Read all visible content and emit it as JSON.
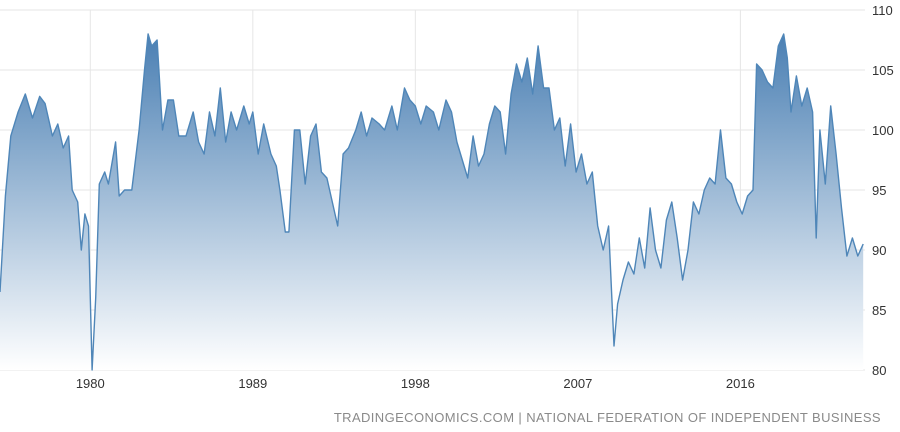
{
  "source_text": "TRADINGECONOMICS.COM | NATIONAL FEDERATION OF INDEPENDENT BUSINESS",
  "colors": {
    "line": "#4f86b8",
    "fill_top": "#4a7fb3",
    "fill_bottom": "#ffffff",
    "grid": "#e6e6e6"
  },
  "chart_data": {
    "type": "area",
    "title": "",
    "xlabel": "",
    "ylabel": "",
    "xlim": [
      1975,
      2022.9
    ],
    "ylim": [
      80,
      110
    ],
    "x_ticks": [
      1980,
      1989,
      1998,
      2007,
      2016
    ],
    "x_tick_labels": [
      "1980",
      "1989",
      "1998",
      "2007",
      "2016"
    ],
    "y_ticks": [
      80,
      85,
      90,
      95,
      100,
      105,
      110
    ],
    "y_tick_labels": [
      "80",
      "85",
      "90",
      "95",
      "100",
      "105",
      "110"
    ],
    "grid": true,
    "y_axis_side": "right",
    "series": [
      {
        "values": [
          [
            1975.0,
            86.5
          ],
          [
            1975.3,
            94.5
          ],
          [
            1975.6,
            99.5
          ],
          [
            1976.0,
            101.5
          ],
          [
            1976.4,
            103.0
          ],
          [
            1976.8,
            101.0
          ],
          [
            1977.2,
            102.8
          ],
          [
            1977.5,
            102.2
          ],
          [
            1977.9,
            99.5
          ],
          [
            1978.2,
            100.5
          ],
          [
            1978.5,
            98.5
          ],
          [
            1978.8,
            99.5
          ],
          [
            1979.0,
            95.0
          ],
          [
            1979.3,
            94.0
          ],
          [
            1979.5,
            90.0
          ],
          [
            1979.7,
            93.0
          ],
          [
            1979.9,
            92.0
          ],
          [
            1980.1,
            80.0
          ],
          [
            1980.3,
            86.0
          ],
          [
            1980.5,
            95.5
          ],
          [
            1980.8,
            96.5
          ],
          [
            1981.0,
            95.5
          ],
          [
            1981.4,
            99.0
          ],
          [
            1981.6,
            94.5
          ],
          [
            1981.9,
            95.0
          ],
          [
            1982.3,
            95.0
          ],
          [
            1982.7,
            100.0
          ],
          [
            1983.0,
            105.0
          ],
          [
            1983.2,
            108.0
          ],
          [
            1983.4,
            107.0
          ],
          [
            1983.7,
            107.5
          ],
          [
            1984.0,
            100.0
          ],
          [
            1984.3,
            102.5
          ],
          [
            1984.6,
            102.5
          ],
          [
            1984.9,
            99.5
          ],
          [
            1985.3,
            99.5
          ],
          [
            1985.7,
            101.5
          ],
          [
            1986.0,
            99.0
          ],
          [
            1986.3,
            98.0
          ],
          [
            1986.6,
            101.5
          ],
          [
            1986.9,
            99.5
          ],
          [
            1987.2,
            103.5
          ],
          [
            1987.5,
            99.0
          ],
          [
            1987.8,
            101.5
          ],
          [
            1988.1,
            100.0
          ],
          [
            1988.5,
            102.0
          ],
          [
            1988.8,
            100.5
          ],
          [
            1989.0,
            101.5
          ],
          [
            1989.3,
            98.0
          ],
          [
            1989.6,
            100.5
          ],
          [
            1990.0,
            98.0
          ],
          [
            1990.3,
            97.0
          ],
          [
            1990.5,
            95.0
          ],
          [
            1990.8,
            91.5
          ],
          [
            1991.0,
            91.5
          ],
          [
            1991.3,
            100.0
          ],
          [
            1991.6,
            100.0
          ],
          [
            1991.9,
            95.5
          ],
          [
            1992.2,
            99.5
          ],
          [
            1992.5,
            100.5
          ],
          [
            1992.8,
            96.5
          ],
          [
            1993.1,
            96.0
          ],
          [
            1993.4,
            94.0
          ],
          [
            1993.7,
            92.0
          ],
          [
            1994.0,
            98.0
          ],
          [
            1994.3,
            98.5
          ],
          [
            1994.7,
            100.0
          ],
          [
            1995.0,
            101.5
          ],
          [
            1995.3,
            99.5
          ],
          [
            1995.6,
            101.0
          ],
          [
            1996.0,
            100.5
          ],
          [
            1996.3,
            100.0
          ],
          [
            1996.7,
            102.0
          ],
          [
            1997.0,
            100.0
          ],
          [
            1997.4,
            103.5
          ],
          [
            1997.7,
            102.5
          ],
          [
            1998.0,
            102.0
          ],
          [
            1998.3,
            100.5
          ],
          [
            1998.6,
            102.0
          ],
          [
            1999.0,
            101.5
          ],
          [
            1999.3,
            100.0
          ],
          [
            1999.7,
            102.5
          ],
          [
            2000.0,
            101.5
          ],
          [
            2000.3,
            99.0
          ],
          [
            2000.6,
            97.5
          ],
          [
            2000.9,
            96.0
          ],
          [
            2001.2,
            99.5
          ],
          [
            2001.5,
            97.0
          ],
          [
            2001.8,
            98.0
          ],
          [
            2002.1,
            100.5
          ],
          [
            2002.4,
            102.0
          ],
          [
            2002.7,
            101.5
          ],
          [
            2003.0,
            98.0
          ],
          [
            2003.3,
            103.0
          ],
          [
            2003.6,
            105.5
          ],
          [
            2003.9,
            104.0
          ],
          [
            2004.2,
            106.0
          ],
          [
            2004.5,
            103.0
          ],
          [
            2004.8,
            107.0
          ],
          [
            2005.1,
            103.5
          ],
          [
            2005.4,
            103.5
          ],
          [
            2005.7,
            100.0
          ],
          [
            2006.0,
            101.0
          ],
          [
            2006.3,
            97.0
          ],
          [
            2006.6,
            100.5
          ],
          [
            2006.9,
            96.5
          ],
          [
            2007.2,
            98.0
          ],
          [
            2007.5,
            95.5
          ],
          [
            2007.8,
            96.5
          ],
          [
            2008.1,
            92.0
          ],
          [
            2008.4,
            90.0
          ],
          [
            2008.7,
            92.0
          ],
          [
            2009.0,
            82.0
          ],
          [
            2009.2,
            85.5
          ],
          [
            2009.5,
            87.5
          ],
          [
            2009.8,
            89.0
          ],
          [
            2010.1,
            88.0
          ],
          [
            2010.4,
            91.0
          ],
          [
            2010.7,
            88.5
          ],
          [
            2011.0,
            93.5
          ],
          [
            2011.3,
            90.0
          ],
          [
            2011.6,
            88.5
          ],
          [
            2011.9,
            92.5
          ],
          [
            2012.2,
            94.0
          ],
          [
            2012.5,
            91.0
          ],
          [
            2012.8,
            87.5
          ],
          [
            2013.1,
            90.0
          ],
          [
            2013.4,
            94.0
          ],
          [
            2013.7,
            93.0
          ],
          [
            2014.0,
            95.0
          ],
          [
            2014.3,
            96.0
          ],
          [
            2014.6,
            95.5
          ],
          [
            2014.9,
            100.0
          ],
          [
            2015.2,
            96.0
          ],
          [
            2015.5,
            95.5
          ],
          [
            2015.8,
            94.0
          ],
          [
            2016.1,
            93.0
          ],
          [
            2016.4,
            94.5
          ],
          [
            2016.7,
            95.0
          ],
          [
            2016.9,
            105.5
          ],
          [
            2017.2,
            105.0
          ],
          [
            2017.5,
            104.0
          ],
          [
            2017.8,
            103.5
          ],
          [
            2018.1,
            107.0
          ],
          [
            2018.4,
            108.0
          ],
          [
            2018.6,
            106.0
          ],
          [
            2018.8,
            101.5
          ],
          [
            2019.1,
            104.5
          ],
          [
            2019.4,
            102.0
          ],
          [
            2019.7,
            103.5
          ],
          [
            2020.0,
            101.5
          ],
          [
            2020.2,
            91.0
          ],
          [
            2020.4,
            100.0
          ],
          [
            2020.7,
            95.5
          ],
          [
            2021.0,
            102.0
          ],
          [
            2021.3,
            98.0
          ],
          [
            2021.6,
            93.5
          ],
          [
            2021.9,
            89.5
          ],
          [
            2022.2,
            91.0
          ],
          [
            2022.5,
            89.5
          ],
          [
            2022.8,
            90.5
          ]
        ]
      }
    ]
  }
}
